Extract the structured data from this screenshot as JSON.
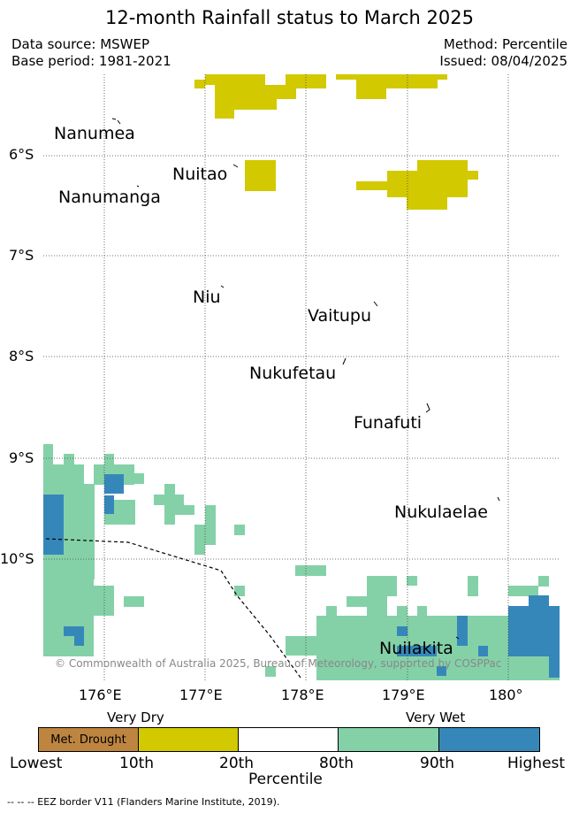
{
  "title": "12-month Rainfall status to March 2025",
  "data_source": "Data source: MSWEP",
  "base_period": "Base period: 1981-2021",
  "method": "Method: Percentile",
  "issued": "Issued: 08/04/2025",
  "lat_labels": [
    "6°S",
    "7°S",
    "8°S",
    "9°S",
    "10°S"
  ],
  "lon_labels": [
    "176°E",
    "177°E",
    "178°E",
    "179°E",
    "180°"
  ],
  "islands": {
    "nanumea": "Nanumea",
    "nuitao": "Nuitao",
    "nanumanga": "Nanumanga",
    "niu": "Niu",
    "vaitupu": "Vaitupu",
    "nukufetau": "Nukufetau",
    "funafuti": "Funafuti",
    "nukulaelae": "Nukulaelae",
    "nuilakita": "Nuilakita"
  },
  "copyright": "© Commonwealth of Australia 2025, Bureau of Meteorology, supported by COSPPac",
  "legend": {
    "very_dry": "Very Dry",
    "very_wet": "Very Wet",
    "drought_label": "Met. Drought",
    "ticks": [
      "Lowest",
      "10th",
      "20th",
      "80th",
      "90th",
      "Highest"
    ],
    "axis_label": "Percentile",
    "colors": {
      "drought": "#bd8540",
      "below_10": "#d2c900",
      "normal": "#ffffff",
      "above_80": "#84d1a8",
      "above_90": "#3687b9"
    }
  },
  "footnote": "--  --  -- EEZ border V11 (Flanders Marine Institute, 2019)."
}
